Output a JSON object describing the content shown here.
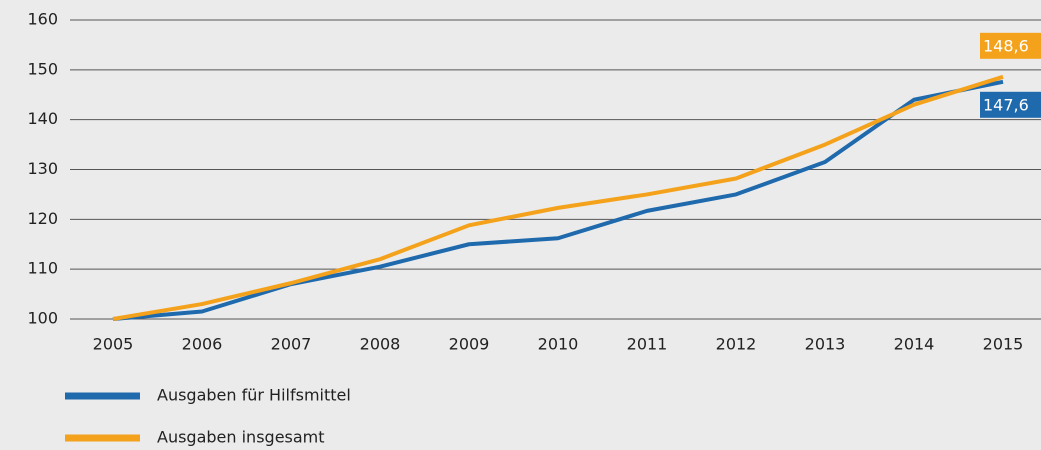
{
  "chart_data": {
    "type": "line",
    "categories": [
      "2005",
      "2006",
      "2007",
      "2008",
      "2009",
      "2010",
      "2011",
      "2012",
      "2013",
      "2014",
      "2015"
    ],
    "series": [
      {
        "name": "Ausgaben für Hilfsmittel",
        "color": "#1f69ad",
        "values": [
          100,
          101.5,
          107,
          110.5,
          115,
          116.2,
          121.7,
          125,
          131.5,
          144,
          147.6
        ],
        "value_labels": [
          null,
          null,
          null,
          null,
          null,
          null,
          null,
          null,
          null,
          null,
          "147,6"
        ]
      },
      {
        "name": "Ausgaben insgesamt",
        "color": "#f4a21c",
        "values": [
          100,
          103,
          107.2,
          112,
          118.8,
          122.3,
          125,
          128.2,
          135,
          143,
          148.6
        ],
        "value_labels": [
          null,
          null,
          null,
          null,
          null,
          null,
          null,
          null,
          null,
          null,
          "148,6"
        ]
      }
    ],
    "ylim": [
      100,
      160
    ],
    "yticks": [
      100,
      110,
      120,
      130,
      140,
      150,
      160
    ],
    "grid": true
  }
}
